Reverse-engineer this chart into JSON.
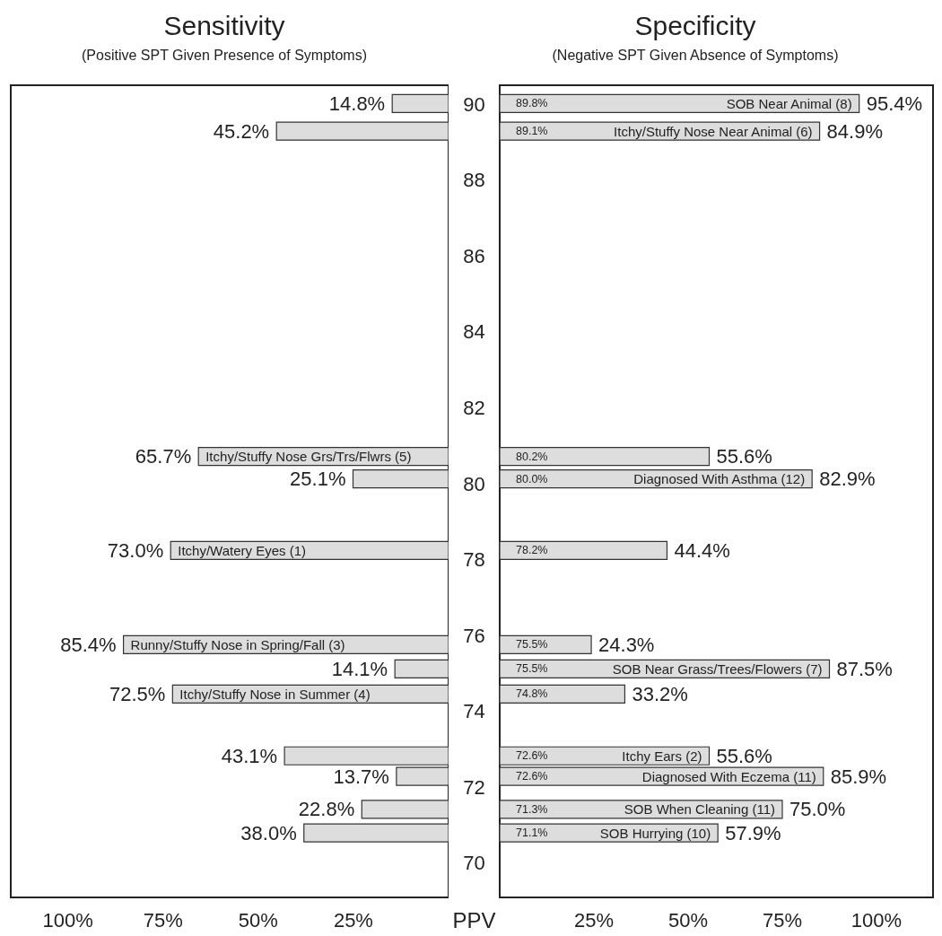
{
  "chart_data": [
    {
      "type": "bar",
      "orientation": "horizontal",
      "title": "Sensitivity",
      "subtitle": "(Positive SPT Given Presence of Symptoms)",
      "x": [
        90.02,
        89.29,
        80.72,
        80.13,
        78.24,
        75.76,
        75.12,
        74.46,
        72.83,
        72.29,
        71.42,
        70.8
      ],
      "values": [
        14.8,
        45.2,
        65.7,
        25.1,
        73.0,
        85.4,
        14.1,
        72.5,
        43.1,
        13.7,
        22.8,
        38.0
      ],
      "value_labels": [
        "14.8%",
        "45.2%",
        "65.7%",
        "25.1%",
        "73.0%",
        "85.4%",
        "14.1%",
        "72.5%",
        "43.1%",
        "13.7%",
        "22.8%",
        "38.0%"
      ],
      "color": "#dddddd",
      "xlim": [
        115,
        0
      ],
      "xticks": [
        {
          "value": 100,
          "label": "100%"
        },
        {
          "value": 75,
          "label": "75%"
        },
        {
          "value": 50,
          "label": "50%"
        },
        {
          "value": 25,
          "label": "25%"
        }
      ],
      "ylim": [
        69.1,
        90.5
      ],
      "yticks": [
        70,
        72,
        74,
        76,
        78,
        80,
        82,
        84,
        86,
        88,
        90
      ],
      "tick_labels": "x",
      "annotations": [
        {
          "text": "Itchy/Stuffy Nose Grs/Trs/Flwrs (5)",
          "x": 65.7,
          "y": 80.72
        },
        {
          "text": "Itchy/Watery Eyes (1)",
          "x": 73.0,
          "y": 78.24
        },
        {
          "text": "Runny/Stuffy Nose in Spring/Fall (3)",
          "x": 85.4,
          "y": 75.76
        },
        {
          "text": "Itchy/Stuffy Nose in Summer (4)",
          "x": 72.5,
          "y": 74.46
        }
      ]
    },
    {
      "type": "bar",
      "orientation": "horizontal",
      "title": "Specificity",
      "subtitle": "(Negative SPT Given Absence of Symptoms)",
      "ylabel": "PPV",
      "x": [
        90.02,
        89.29,
        80.72,
        80.13,
        78.24,
        75.76,
        75.12,
        74.46,
        72.83,
        72.29,
        71.42,
        70.8
      ],
      "values": [
        95.4,
        84.9,
        55.6,
        82.9,
        44.4,
        24.3,
        87.5,
        33.2,
        55.6,
        85.9,
        75.0,
        57.9
      ],
      "value_labels": [
        "95.4%",
        "84.9%",
        "55.6%",
        "82.9%",
        "44.4%",
        "24.3%",
        "87.5%",
        "33.2%",
        "55.6%",
        "85.9%",
        "75.0%",
        "57.9%"
      ],
      "color": "#dddddd",
      "xlim": [
        0,
        115
      ],
      "xticks": [
        {
          "value": 25,
          "label": "25%"
        },
        {
          "value": 50,
          "label": "50%"
        },
        {
          "value": 75,
          "label": "75%"
        },
        {
          "value": 100,
          "label": "100%"
        }
      ],
      "ylim": [
        69.1,
        90.5
      ],
      "yticks": [
        70,
        72,
        74,
        76,
        78,
        80,
        82,
        84,
        86,
        88,
        90
      ],
      "annotations": [
        {
          "text": "SOB Near Animal (8)",
          "x": 95.4,
          "y": 90.02
        },
        {
          "text": "Itchy/Stuffy Nose Near Animal (6)",
          "x": 84.9,
          "y": 89.29
        },
        {
          "text": "Diagnosed With Asthma (12)",
          "x": 82.9,
          "y": 80.13
        },
        {
          "text": "SOB Near Grass/Trees/Flowers (7)",
          "x": 87.5,
          "y": 75.12
        },
        {
          "text": "Itchy Ears (2)",
          "x": 55.6,
          "y": 72.83
        },
        {
          "text": "Diagnosed With Eczema (11)",
          "x": 85.9,
          "y": 72.29
        },
        {
          "text": "SOB When Cleaning (11)",
          "x": 75.0,
          "y": 71.42
        },
        {
          "text": "SOB Hurrying (10)",
          "x": 57.9,
          "y": 70.8
        },
        {
          "text": "89.8%",
          "x": 0,
          "y": 90.02
        },
        {
          "text": "89.1%",
          "x": 0,
          "y": 89.29
        },
        {
          "text": "80.2%",
          "x": 0,
          "y": 80.72
        },
        {
          "text": "80.0%",
          "x": 0,
          "y": 80.13
        },
        {
          "text": "78.2%",
          "x": 0,
          "y": 78.24
        },
        {
          "text": "75.5%",
          "x": 0,
          "y": 75.76
        },
        {
          "text": "75.5%",
          "x": 0,
          "y": 75.12
        },
        {
          "text": "74.8%",
          "x": 0,
          "y": 74.46
        },
        {
          "text": "72.6%",
          "x": 0,
          "y": 72.83
        },
        {
          "text": "72.6%",
          "x": 0,
          "y": 72.29
        },
        {
          "text": "71.3%",
          "x": 0,
          "y": 71.42
        },
        {
          "text": "71.1%",
          "x": 0,
          "y": 70.8
        }
      ]
    }
  ]
}
